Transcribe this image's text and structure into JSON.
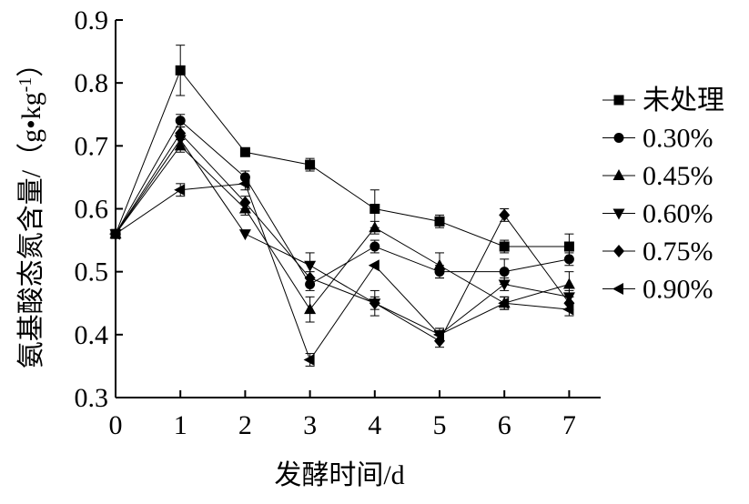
{
  "chart_data": {
    "type": "line",
    "xlabel": "发酵时间/d",
    "ylabel_main": "氨基酸态氮含量/（g•kg",
    "ylabel_sup": "-1",
    "ylabel_tail": "）",
    "x": [
      0,
      1,
      2,
      3,
      4,
      5,
      6,
      7
    ],
    "x_ticks": [
      "0",
      "1",
      "2",
      "3",
      "4",
      "5",
      "6",
      "7"
    ],
    "y_ticks": [
      "0.3",
      "0.4",
      "0.5",
      "0.6",
      "0.7",
      "0.8",
      "0.9"
    ],
    "xlim": [
      0,
      7.5
    ],
    "ylim": [
      0.3,
      0.9
    ],
    "grid": false,
    "legend_position": "right",
    "series": [
      {
        "name": "未处理",
        "marker": "square",
        "values": [
          0.56,
          0.82,
          0.69,
          0.67,
          0.6,
          0.58,
          0.54,
          0.54
        ],
        "errors": [
          0,
          0.04,
          0,
          0.01,
          0.03,
          0.01,
          0.01,
          0.02
        ]
      },
      {
        "name": "0.30%",
        "marker": "circle",
        "values": [
          0.56,
          0.74,
          0.65,
          0.48,
          0.54,
          0.5,
          0.5,
          0.52
        ],
        "errors": [
          0,
          0.01,
          0.01,
          0.01,
          0.01,
          0.01,
          0.02,
          0.01
        ]
      },
      {
        "name": "0.45%",
        "marker": "triangle-up",
        "values": [
          0.56,
          0.7,
          0.6,
          0.44,
          0.57,
          0.51,
          0.45,
          0.48
        ],
        "errors": [
          0,
          0.01,
          0.01,
          0.02,
          0.01,
          0.02,
          0.01,
          0.02
        ]
      },
      {
        "name": "0.60%",
        "marker": "triangle-down",
        "values": [
          0.56,
          0.71,
          0.56,
          0.51,
          0.45,
          0.4,
          0.48,
          0.46
        ],
        "errors": [
          0,
          0.01,
          0,
          0.02,
          0.01,
          0.01,
          0.01,
          0.01
        ]
      },
      {
        "name": "0.75%",
        "marker": "diamond",
        "values": [
          0.56,
          0.72,
          0.61,
          0.49,
          0.45,
          0.39,
          0.59,
          0.45
        ],
        "errors": [
          0,
          0.01,
          0.01,
          0.01,
          0.02,
          0.01,
          0.01,
          0.01
        ]
      },
      {
        "name": "0.90%",
        "marker": "triangle-left",
        "values": [
          0.56,
          0.63,
          0.64,
          0.36,
          0.51,
          0.4,
          0.45,
          0.44
        ],
        "errors": [
          0,
          0.01,
          0.01,
          0.01,
          0,
          0.01,
          0.01,
          0.01
        ]
      }
    ]
  }
}
